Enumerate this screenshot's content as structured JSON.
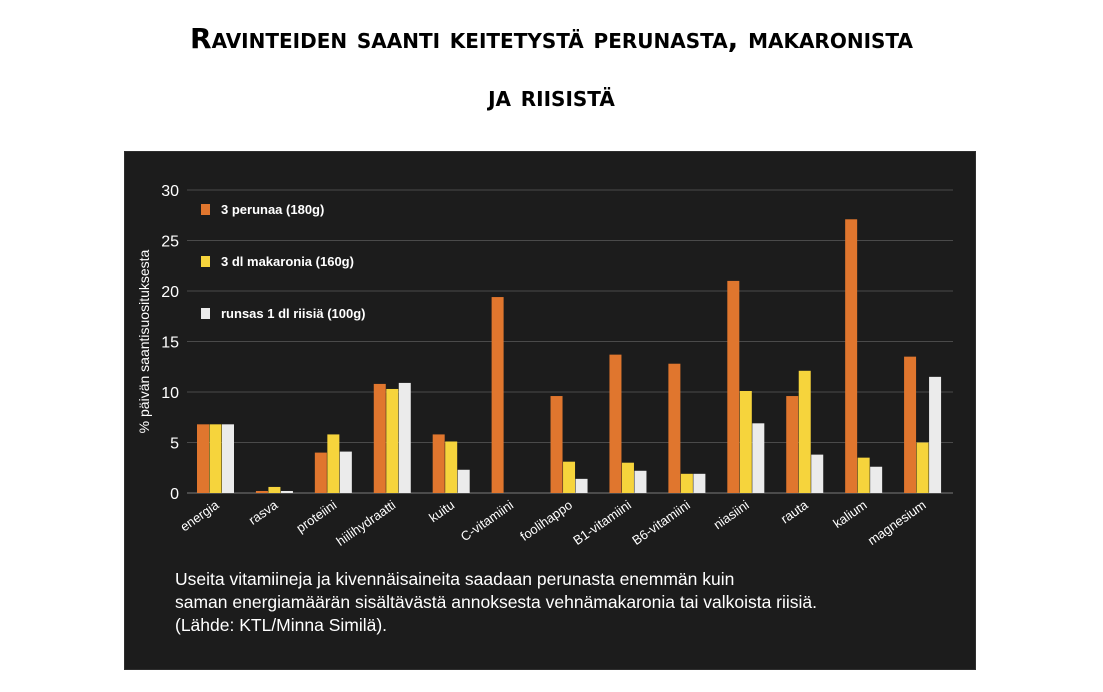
{
  "title": {
    "line1": "Ravinteiden saanti keitetystä perunasta, makaronista",
    "line2": "ja riisistä"
  },
  "chart_data": {
    "type": "bar",
    "title": "Ravinteiden saanti keitetystä perunasta, makaronista ja riisistä",
    "xlabel": "",
    "ylabel": "% päivän saantisuosituksesta",
    "ylim": [
      0,
      30
    ],
    "yticks": [
      "0",
      "5",
      "10",
      "15",
      "20",
      "25",
      "30"
    ],
    "grid": true,
    "legend_position": "top-left",
    "categories": [
      "energia",
      "rasva",
      "proteiini",
      "hiilihydraatti",
      "kuitu",
      "C-vitamiini",
      "foolihappo",
      "B1-vitamiini",
      "B6-vitamiini",
      "niasiini",
      "rauta",
      "kalium",
      "magnesium"
    ],
    "series": [
      {
        "name": "3 perunaa (180g)",
        "color": "#e0762e",
        "values": [
          6.8,
          0.2,
          4.0,
          10.8,
          5.8,
          19.4,
          9.6,
          13.7,
          12.8,
          21.0,
          9.6,
          27.1,
          13.5
        ]
      },
      {
        "name": "3 dl makaronia (160g)",
        "color": "#f6d43c",
        "values": [
          6.8,
          0.6,
          5.8,
          10.3,
          5.1,
          0,
          3.1,
          3.0,
          1.9,
          10.1,
          12.1,
          3.5,
          5.0
        ]
      },
      {
        "name": "runsas 1 dl riisiä (100g)",
        "color": "#ebebeb",
        "values": [
          6.8,
          0.2,
          4.1,
          10.9,
          2.3,
          0,
          1.4,
          2.2,
          1.9,
          6.9,
          3.8,
          2.6,
          11.5
        ]
      }
    ]
  },
  "caption": {
    "line1": "Useita vitamiineja ja kivennäisaineita saadaan perunasta enemmän kuin",
    "line2": "saman energiamäärän sisältävästä annoksesta vehnämakaronia tai valkoista riisiä.",
    "line3": "(Lähde: KTL/Minna Similä)."
  }
}
